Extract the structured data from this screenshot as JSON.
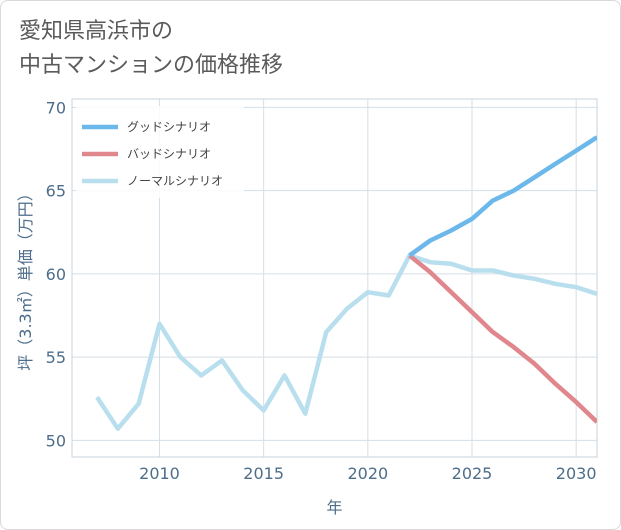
{
  "title": "愛知県高浜市の\n中古マンションの価格推移",
  "colors": {
    "good": "#6cb8ea",
    "bad": "#e0878e",
    "normal": "#b9dfee",
    "grid": "#d4dfe8",
    "axis_text": "#4d6d8a"
  },
  "chart_data": {
    "type": "line",
    "title": "愛知県高浜市の\n中古マンションの価格推移",
    "xlabel": "年",
    "ylabel": "坪（3.3㎡）単価（万円）",
    "xlim": [
      2005.8,
      2031
    ],
    "ylim": [
      49,
      70.5
    ],
    "x_ticks": [
      2010,
      2015,
      2020,
      2025,
      2030
    ],
    "y_ticks": [
      50,
      55,
      60,
      65,
      70
    ],
    "grid": true,
    "legend_position": "top-left",
    "series": [
      {
        "name": "グッドシナリオ",
        "color": "#6cb8ea",
        "x": [
          2022,
          2023,
          2024,
          2025,
          2026,
          2027,
          2028,
          2029,
          2030,
          2031
        ],
        "y": [
          61.1,
          62.0,
          62.6,
          63.3,
          64.4,
          65.0,
          65.8,
          66.6,
          67.4,
          68.2
        ]
      },
      {
        "name": "バッドシナリオ",
        "color": "#e0878e",
        "x": [
          2022,
          2023,
          2024,
          2025,
          2026,
          2027,
          2028,
          2029,
          2030,
          2031
        ],
        "y": [
          61.1,
          60.1,
          58.9,
          57.7,
          56.5,
          55.6,
          54.6,
          53.4,
          52.3,
          51.1
        ]
      },
      {
        "name": "ノーマルシナリオ",
        "color": "#b9dfee",
        "x": [
          2007,
          2008,
          2009,
          2010,
          2011,
          2012,
          2013,
          2014,
          2015,
          2016,
          2017,
          2018,
          2019,
          2020,
          2021,
          2022,
          2023,
          2024,
          2025,
          2026,
          2027,
          2028,
          2029,
          2030,
          2031
        ],
        "y": [
          52.6,
          50.7,
          52.2,
          57.0,
          55.0,
          53.9,
          54.8,
          53.0,
          51.8,
          53.9,
          51.6,
          56.5,
          57.9,
          58.9,
          58.7,
          61.1,
          60.7,
          60.6,
          60.2,
          60.2,
          59.9,
          59.7,
          59.4,
          59.2,
          58.8
        ]
      }
    ]
  }
}
